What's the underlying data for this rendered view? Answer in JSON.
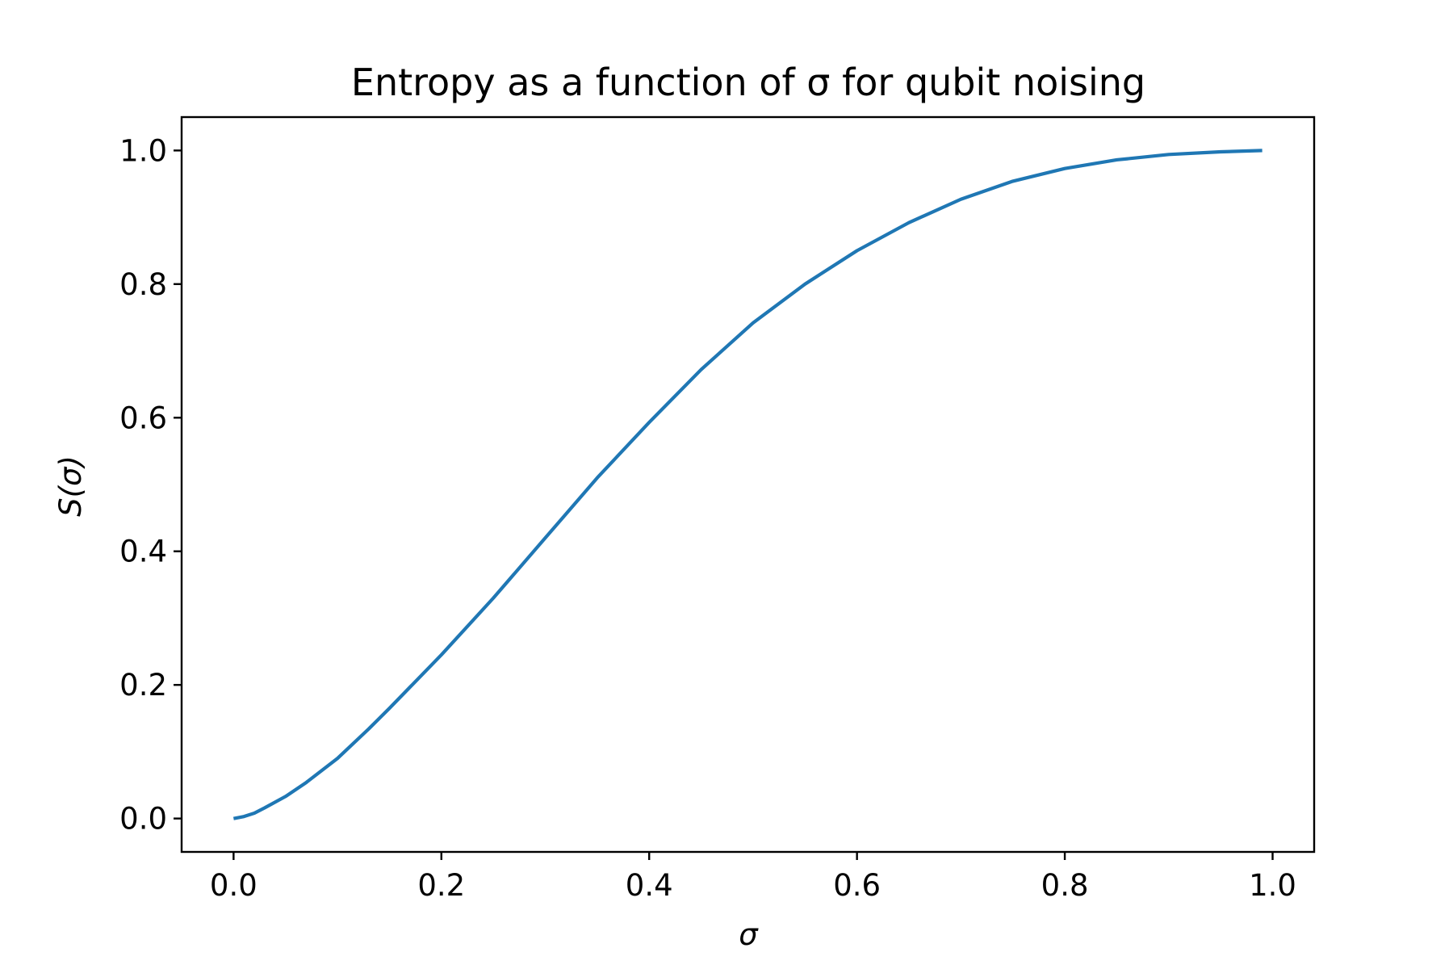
{
  "chart_data": {
    "type": "line",
    "title": "Entropy as a function of σ for qubit noising",
    "xlabel": "σ",
    "ylabel": "S(σ)",
    "xlim": [
      -0.05,
      1.04
    ],
    "ylim": [
      -0.05,
      1.05
    ],
    "xticks": [
      0.0,
      0.2,
      0.4,
      0.6,
      0.8,
      1.0
    ],
    "xtick_labels": [
      "0.0",
      "0.2",
      "0.4",
      "0.6",
      "0.8",
      "1.0"
    ],
    "yticks": [
      0.0,
      0.2,
      0.4,
      0.6,
      0.8,
      1.0
    ],
    "ytick_labels": [
      "0.0",
      "0.2",
      "0.4",
      "0.6",
      "0.8",
      "1.0"
    ],
    "grid": false,
    "series": [
      {
        "color": "#1f77b4",
        "x": [
          0.0,
          0.01,
          0.02,
          0.03,
          0.05,
          0.07,
          0.1,
          0.13,
          0.15,
          0.2,
          0.25,
          0.3,
          0.35,
          0.4,
          0.45,
          0.5,
          0.55,
          0.6,
          0.65,
          0.7,
          0.75,
          0.8,
          0.85,
          0.9,
          0.95,
          0.99
        ],
        "y": [
          0.0,
          0.003,
          0.008,
          0.016,
          0.033,
          0.054,
          0.09,
          0.134,
          0.165,
          0.245,
          0.33,
          0.42,
          0.51,
          0.593,
          0.672,
          0.742,
          0.8,
          0.85,
          0.892,
          0.927,
          0.954,
          0.973,
          0.986,
          0.994,
          0.998,
          1.0
        ]
      }
    ]
  }
}
